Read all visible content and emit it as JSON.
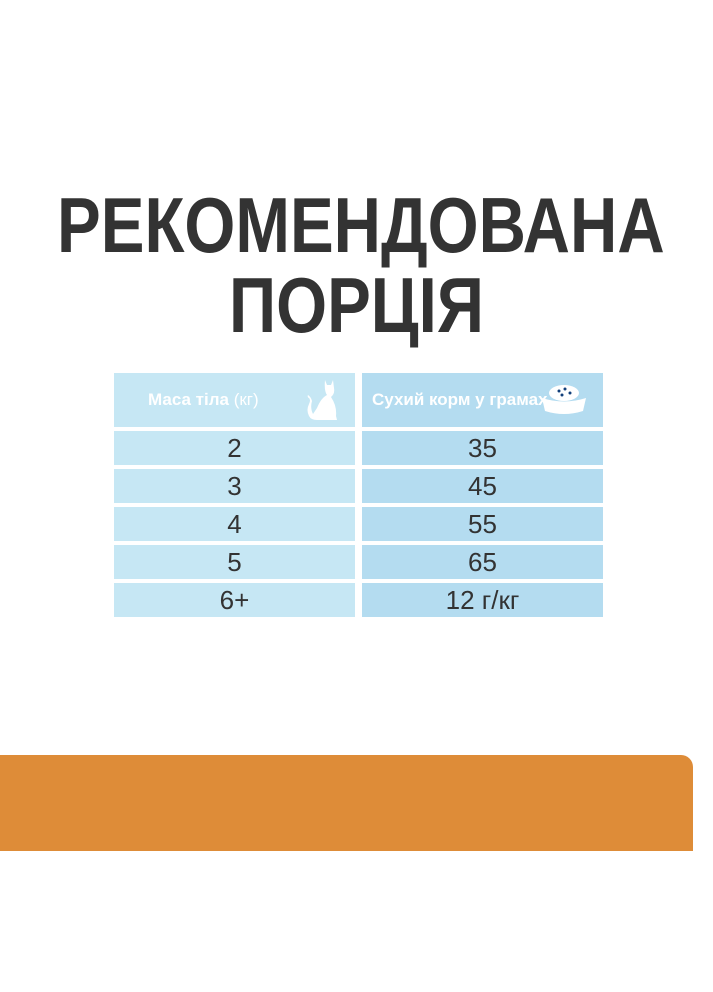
{
  "title": {
    "line1": "РЕКОМЕНДОВАНА",
    "line2": "ПОРЦІЯ"
  },
  "table": {
    "headers": [
      {
        "label": "Маса тіла",
        "unit": "(кг)",
        "icon": "cat-icon"
      },
      {
        "label": "Сухий корм у грамах",
        "icon": "food-bowl-icon"
      }
    ],
    "rows": [
      {
        "weight": "2",
        "food": "35"
      },
      {
        "weight": "3",
        "food": "45"
      },
      {
        "weight": "4",
        "food": "55"
      },
      {
        "weight": "5",
        "food": "65"
      },
      {
        "weight": "6+",
        "food": "12 г/кг"
      }
    ]
  },
  "colors": {
    "header": "#123f7a",
    "left_cell": "#c6e7f4",
    "right_cell": "#b4dcf0",
    "band": "#de8c38",
    "title": "#333333"
  }
}
